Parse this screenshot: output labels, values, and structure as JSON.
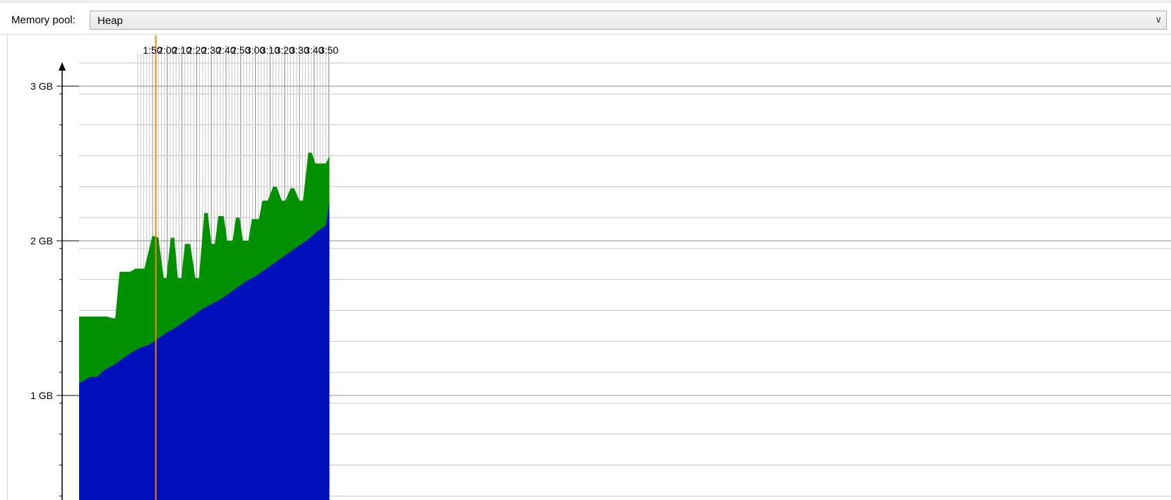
{
  "toolbar": {
    "memory_pool_label": "Memory pool:",
    "memory_pool_value": "Heap",
    "memory_pool_arrow_icon": "chevron-down-icon"
  },
  "chart_data": {
    "type": "area",
    "title": "",
    "xlabel": "",
    "ylabel": "",
    "x_tick_labels": [
      "1:50",
      "2:00",
      "2:10",
      "2:20",
      "2:30",
      "2:40",
      "2:50",
      "3:00",
      "3:10",
      "3:20",
      "3:30",
      "3:40",
      "3:50"
    ],
    "y_tick_labels": [
      "1 GB",
      "2 GB",
      "3 GB"
    ],
    "ylim": [
      0.35,
      3.55
    ],
    "xlim": [
      1.0,
      3.84
    ],
    "units": {
      "x": "minutes:seconds",
      "y": "GB"
    },
    "marker_x": 1.87,
    "marker_color": "#ff8000",
    "grid": true,
    "series": [
      {
        "color": "#0010bb",
        "x": [
          1.0,
          1.13,
          1.2,
          1.3,
          1.4,
          1.5,
          1.6,
          1.7,
          1.8,
          1.9,
          2.0,
          2.1,
          2.2,
          2.3,
          2.4,
          2.5,
          2.6,
          2.7,
          2.8,
          2.9,
          3.0,
          3.1,
          3.2,
          3.3,
          3.4,
          3.5,
          3.6,
          3.7,
          3.8,
          3.84
        ],
        "values": [
          1.08,
          1.12,
          1.12,
          1.17,
          1.2,
          1.24,
          1.28,
          1.31,
          1.33,
          1.37,
          1.41,
          1.44,
          1.48,
          1.52,
          1.56,
          1.59,
          1.62,
          1.66,
          1.7,
          1.74,
          1.77,
          1.81,
          1.85,
          1.89,
          1.93,
          1.97,
          2.01,
          2.06,
          2.1,
          2.25
        ]
      },
      {
        "color": "#009000",
        "x": [
          1.0,
          1.32,
          1.38,
          1.41,
          1.46,
          1.48,
          1.58,
          1.64,
          1.68,
          1.72,
          1.74,
          1.83,
          1.87,
          1.9,
          1.96,
          1.99,
          2.04,
          2.08,
          2.12,
          2.16,
          2.2,
          2.26,
          2.32,
          2.36,
          2.42,
          2.46,
          2.5,
          2.54,
          2.58,
          2.64,
          2.68,
          2.74,
          2.78,
          2.82,
          2.86,
          2.92,
          2.96,
          3.04,
          3.08,
          3.14,
          3.2,
          3.24,
          3.3,
          3.34,
          3.4,
          3.44,
          3.5,
          3.54,
          3.6,
          3.64,
          3.68,
          3.72,
          3.76,
          3.8,
          3.84
        ],
        "values": [
          1.51,
          1.51,
          1.5,
          1.5,
          1.8,
          1.8,
          1.8,
          1.82,
          1.82,
          1.82,
          1.82,
          2.03,
          2.03,
          2.02,
          1.76,
          1.76,
          2.02,
          2.02,
          1.76,
          1.76,
          1.98,
          1.98,
          1.76,
          1.76,
          2.18,
          2.18,
          1.98,
          1.98,
          2.16,
          2.16,
          2.0,
          2.0,
          2.15,
          2.15,
          2.0,
          2.0,
          2.14,
          2.14,
          2.26,
          2.26,
          2.35,
          2.35,
          2.26,
          2.26,
          2.34,
          2.34,
          2.26,
          2.26,
          2.57,
          2.57,
          2.5,
          2.5,
          2.5,
          2.5,
          2.55
        ]
      }
    ]
  }
}
